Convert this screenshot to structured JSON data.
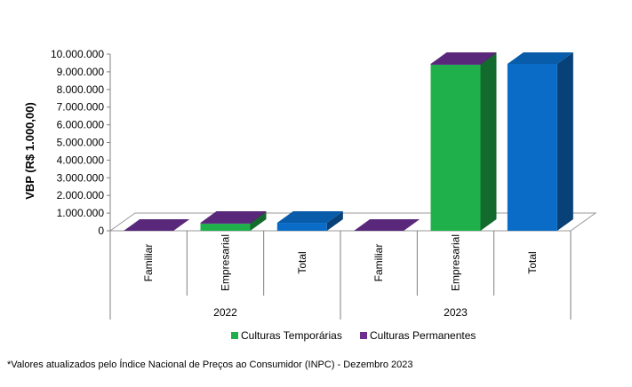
{
  "chart_data": {
    "type": "bar",
    "style": "3d-stacked",
    "ylabel": "VBP (R$ 1.000,00)",
    "ylim": [
      0,
      10000000
    ],
    "yticks": [
      "0",
      "1.000.000",
      "2.000.000",
      "3.000.000",
      "4.000.000",
      "5.000.000",
      "6.000.000",
      "7.000.000",
      "8.000.000",
      "9.000.000",
      "10.000.000"
    ],
    "groups": [
      {
        "label": "2022",
        "categories": [
          "Familiar",
          "Empresarial",
          "Total"
        ]
      },
      {
        "label": "2023",
        "categories": [
          "Familiar",
          "Empresarial",
          "Total"
        ]
      }
    ],
    "series": [
      {
        "name": "Culturas Temporárias",
        "values": [
          0,
          400000,
          0,
          0,
          9400000,
          0
        ],
        "color": "#1fb04b"
      },
      {
        "name": "Culturas Permanentes",
        "values": [
          0,
          50000,
          0,
          0,
          50000,
          0
        ],
        "color": "#6a2f8f"
      }
    ],
    "total_values": [
      0,
      0,
      450000,
      0,
      0,
      9450000
    ],
    "total_color": "#0b6cc7",
    "legend": "bottom"
  },
  "footnote": "*Valores atualizados pelo Índice Nacional de Preços ao Consumidor (INPC) - Dezembro 2023"
}
